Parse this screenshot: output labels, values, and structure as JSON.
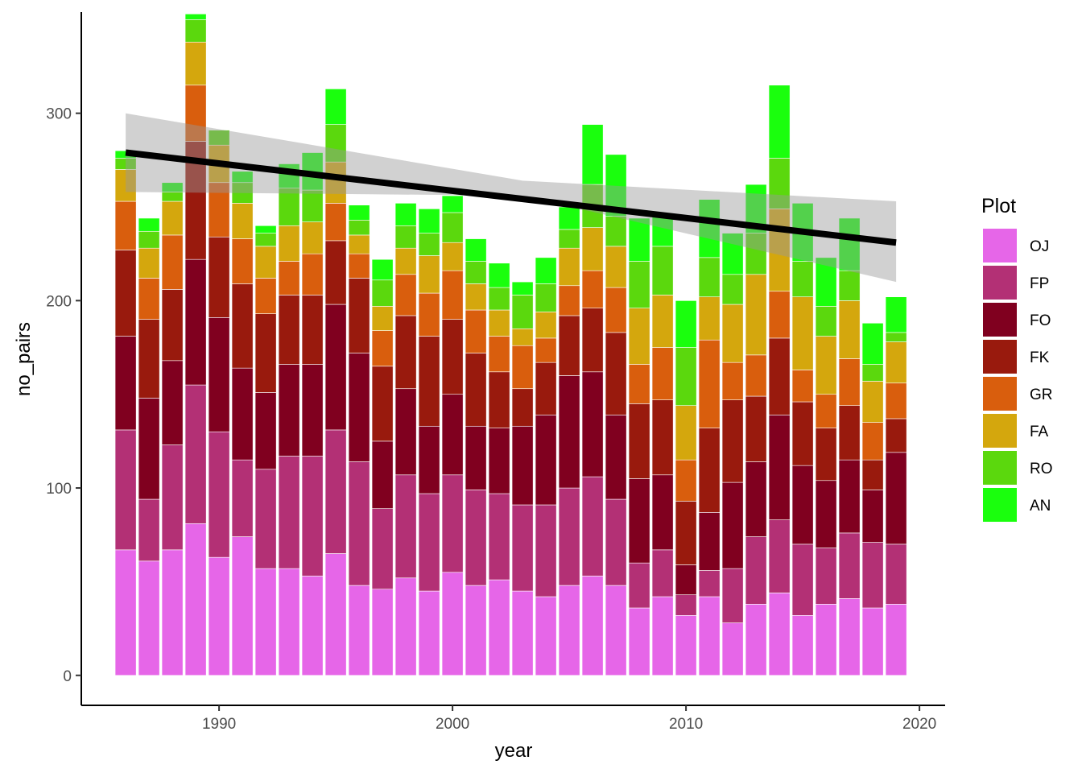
{
  "chart_data": {
    "type": "bar",
    "stacked": true,
    "xlabel": "year",
    "ylabel": "no_pairs",
    "xlim": [
      1984.1,
      2021.1
    ],
    "ylim": [
      -16,
      354
    ],
    "x_ticks": [
      1990,
      2000,
      2010,
      2020
    ],
    "y_ticks": [
      0,
      100,
      200,
      300
    ],
    "legend": {
      "title": "Plot",
      "placement": "right",
      "entries": [
        "OJ",
        "FP",
        "FO",
        "FK",
        "GR",
        "FA",
        "RO",
        "AN"
      ]
    },
    "series_colors": {
      "OJ": "#e666e8",
      "FP": "#b33075",
      "FO": "#80001f",
      "FK": "#991a0d",
      "GR": "#d95e0d",
      "FA": "#d4a70d",
      "RO": "#5bd80d",
      "AN": "#1aff0d"
    },
    "years": [
      1986,
      1987,
      1988,
      1989,
      1990,
      1991,
      1992,
      1993,
      1994,
      1995,
      1996,
      1997,
      1998,
      1999,
      2000,
      2001,
      2002,
      2003,
      2004,
      2005,
      2006,
      2007,
      2008,
      2009,
      2010,
      2011,
      2012,
      2013,
      2014,
      2015,
      2016,
      2017,
      2018,
      2019
    ],
    "series": [
      {
        "name": "OJ",
        "values": [
          67,
          61,
          67,
          81,
          63,
          74,
          57,
          57,
          53,
          65,
          48,
          46,
          52,
          45,
          55,
          48,
          51,
          45,
          42,
          48,
          53,
          48,
          36,
          42,
          32,
          42,
          28,
          38,
          44,
          32,
          38,
          41,
          36,
          38
        ]
      },
      {
        "name": "FP",
        "values": [
          64,
          33,
          56,
          74,
          67,
          41,
          53,
          60,
          64,
          66,
          66,
          43,
          55,
          52,
          52,
          51,
          46,
          46,
          49,
          52,
          53,
          46,
          24,
          25,
          11,
          14,
          29,
          36,
          39,
          38,
          30,
          35,
          35,
          32
        ]
      },
      {
        "name": "FO",
        "values": [
          50,
          54,
          45,
          67,
          61,
          49,
          41,
          49,
          49,
          67,
          58,
          36,
          46,
          36,
          43,
          34,
          35,
          42,
          48,
          60,
          56,
          45,
          45,
          40,
          16,
          31,
          46,
          40,
          56,
          42,
          36,
          39,
          28,
          49
        ]
      },
      {
        "name": "FK",
        "values": [
          46,
          42,
          38,
          63,
          43,
          45,
          42,
          37,
          37,
          34,
          40,
          40,
          39,
          48,
          40,
          39,
          30,
          20,
          28,
          32,
          34,
          44,
          40,
          40,
          34,
          45,
          44,
          35,
          41,
          34,
          28,
          29,
          16,
          18
        ]
      },
      {
        "name": "GR",
        "values": [
          26,
          22,
          29,
          30,
          29,
          24,
          19,
          18,
          22,
          20,
          13,
          19,
          22,
          23,
          26,
          23,
          19,
          23,
          13,
          16,
          20,
          24,
          21,
          28,
          22,
          47,
          20,
          22,
          25,
          17,
          18,
          25,
          20,
          19
        ]
      },
      {
        "name": "FA",
        "values": [
          17,
          16,
          18,
          23,
          20,
          19,
          17,
          19,
          17,
          22,
          10,
          13,
          14,
          20,
          15,
          14,
          14,
          9,
          14,
          20,
          23,
          22,
          30,
          28,
          29,
          23,
          31,
          43,
          44,
          39,
          31,
          31,
          22,
          22
        ]
      },
      {
        "name": "RO",
        "values": [
          6,
          9,
          5,
          12,
          8,
          11,
          7,
          20,
          17,
          20,
          8,
          14,
          12,
          12,
          16,
          12,
          12,
          18,
          15,
          10,
          23,
          16,
          25,
          26,
          31,
          21,
          16,
          22,
          27,
          19,
          16,
          16,
          9,
          5
        ]
      },
      {
        "name": "AN",
        "values": [
          4,
          7,
          5,
          3,
          0,
          6,
          4,
          13,
          20,
          19,
          8,
          11,
          12,
          13,
          9,
          12,
          13,
          7,
          14,
          12,
          32,
          33,
          23,
          17,
          25,
          31,
          22,
          26,
          39,
          31,
          26,
          28,
          22,
          19
        ]
      }
    ],
    "trend": {
      "type": "linear",
      "x": [
        1986,
        2019
      ],
      "y": [
        279,
        231
      ],
      "ci_lower": [
        258,
        210
      ],
      "ci_mid_lower": [
        2003,
        256
      ],
      "ci_mid_upper": [
        2003,
        264
      ],
      "ci_upper": [
        300,
        253
      ]
    }
  }
}
